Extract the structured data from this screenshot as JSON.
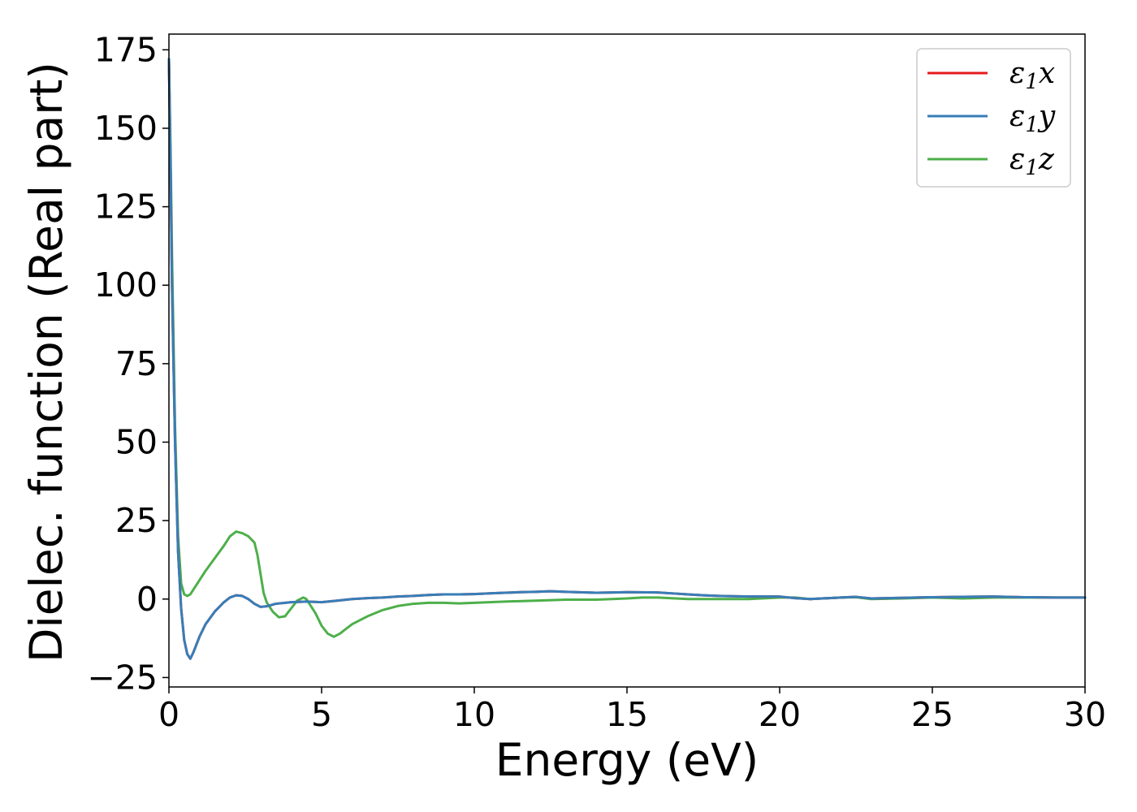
{
  "chart_data": {
    "type": "line",
    "xlabel": "Energy (eV)",
    "ylabel": "Dielec. function (Real part)",
    "xlim": [
      0,
      30
    ],
    "ylim": [
      -28,
      180
    ],
    "xticks": [
      0,
      5,
      10,
      15,
      20,
      25,
      30
    ],
    "yticks": [
      -25,
      0,
      25,
      50,
      75,
      100,
      125,
      150,
      175
    ],
    "grid": false,
    "legend_position": "top-right",
    "series": [
      {
        "name": "ε1x",
        "legend": {
          "symbol": "ε",
          "sub": "1",
          "var": "x"
        },
        "color": "#e41a1c",
        "x": [
          0,
          0.05,
          0.1,
          0.2,
          0.3,
          0.4,
          0.5,
          0.6,
          0.7,
          0.8,
          1.0,
          1.2,
          1.5,
          1.8,
          2.0,
          2.2,
          2.4,
          2.6,
          2.8,
          3.0,
          3.2,
          3.5,
          4.0,
          4.5,
          5.0,
          5.5,
          6.0,
          6.5,
          7.0,
          7.5,
          8.0,
          8.5,
          9.0,
          9.5,
          10.0,
          10.5,
          11.0,
          11.5,
          12.0,
          12.5,
          13.0,
          14.0,
          15.0,
          16.0,
          16.5,
          17.0,
          17.5,
          18.0,
          19.0,
          20.0,
          20.5,
          21.0,
          22.0,
          22.5,
          23.0,
          24.0,
          25.0,
          26.0,
          27.0,
          28.0,
          29.0,
          30.0
        ],
        "y": [
          172,
          140,
          100,
          50,
          15,
          -3,
          -13,
          -17.5,
          -19,
          -17,
          -12,
          -8,
          -4,
          -1,
          0.5,
          1.2,
          1,
          0,
          -1.5,
          -2.5,
          -2.3,
          -1.5,
          -1,
          -0.8,
          -1,
          -0.5,
          0,
          0.3,
          0.5,
          0.8,
          1,
          1.3,
          1.5,
          1.5,
          1.6,
          1.8,
          2,
          2.2,
          2.3,
          2.5,
          2.3,
          2,
          2.2,
          2.1,
          1.8,
          1.5,
          1.2,
          1,
          0.8,
          0.8,
          0.3,
          0,
          0.5,
          0.7,
          0.2,
          0.4,
          0.6,
          0.7,
          0.8,
          0.6,
          0.5,
          0.5
        ]
      },
      {
        "name": "ε1y",
        "legend": {
          "symbol": "ε",
          "sub": "1",
          "var": "y"
        },
        "color": "#377eb8",
        "x": [
          0,
          0.05,
          0.1,
          0.2,
          0.3,
          0.4,
          0.5,
          0.6,
          0.7,
          0.8,
          1.0,
          1.2,
          1.5,
          1.8,
          2.0,
          2.2,
          2.4,
          2.6,
          2.8,
          3.0,
          3.2,
          3.5,
          4.0,
          4.5,
          5.0,
          5.5,
          6.0,
          6.5,
          7.0,
          7.5,
          8.0,
          8.5,
          9.0,
          9.5,
          10.0,
          10.5,
          11.0,
          11.5,
          12.0,
          12.5,
          13.0,
          14.0,
          15.0,
          16.0,
          16.5,
          17.0,
          17.5,
          18.0,
          19.0,
          20.0,
          20.5,
          21.0,
          22.0,
          22.5,
          23.0,
          24.0,
          25.0,
          26.0,
          27.0,
          28.0,
          29.0,
          30.0
        ],
        "y": [
          172,
          140,
          100,
          50,
          15,
          -3,
          -13,
          -17.5,
          -19,
          -17,
          -12,
          -8,
          -4,
          -1,
          0.5,
          1.2,
          1,
          0,
          -1.5,
          -2.5,
          -2.3,
          -1.5,
          -1,
          -0.8,
          -1,
          -0.5,
          0,
          0.3,
          0.5,
          0.8,
          1,
          1.3,
          1.5,
          1.5,
          1.6,
          1.8,
          2,
          2.2,
          2.3,
          2.5,
          2.3,
          2,
          2.2,
          2.1,
          1.8,
          1.5,
          1.2,
          1,
          0.8,
          0.8,
          0.3,
          0,
          0.5,
          0.7,
          0.2,
          0.4,
          0.6,
          0.7,
          0.8,
          0.6,
          0.5,
          0.5
        ]
      },
      {
        "name": "ε1z",
        "legend": {
          "symbol": "ε",
          "sub": "1",
          "var": "z"
        },
        "color": "#4daf4a",
        "x": [
          0,
          0.05,
          0.1,
          0.2,
          0.3,
          0.4,
          0.5,
          0.6,
          0.7,
          0.8,
          1.0,
          1.2,
          1.5,
          1.8,
          2.0,
          2.2,
          2.4,
          2.6,
          2.8,
          2.9,
          3.0,
          3.1,
          3.2,
          3.4,
          3.6,
          3.8,
          4.0,
          4.2,
          4.4,
          4.5,
          4.6,
          4.8,
          5.0,
          5.2,
          5.4,
          5.6,
          5.8,
          6.0,
          6.5,
          7.0,
          7.5,
          8.0,
          8.5,
          9.0,
          9.5,
          10.0,
          11.0,
          12.0,
          13.0,
          14.0,
          15.0,
          15.5,
          16.0,
          17.0,
          18.0,
          19.0,
          20.0,
          20.5,
          21.0,
          22.0,
          22.5,
          23.0,
          24.0,
          25.0,
          26.0,
          27.0,
          28.0,
          29.0,
          30.0
        ],
        "y": [
          172,
          145,
          110,
          55,
          20,
          5,
          1.5,
          1,
          1.5,
          3,
          6,
          9,
          13,
          17,
          20,
          21.5,
          21,
          20,
          18,
          14,
          8,
          2,
          -1,
          -4,
          -5.8,
          -5.5,
          -3,
          -0.5,
          0.5,
          0,
          -1.5,
          -4.5,
          -8.5,
          -11,
          -12,
          -11,
          -9.5,
          -8,
          -5.5,
          -3.5,
          -2.2,
          -1.5,
          -1.2,
          -1.2,
          -1.4,
          -1.2,
          -0.8,
          -0.5,
          -0.2,
          -0.2,
          0.2,
          0.5,
          0.5,
          0,
          0,
          0,
          0.5,
          0.5,
          0,
          0.5,
          0.6,
          0,
          0.2,
          0.5,
          0.2,
          0.5,
          0.5,
          0.5,
          0.5
        ]
      }
    ]
  }
}
